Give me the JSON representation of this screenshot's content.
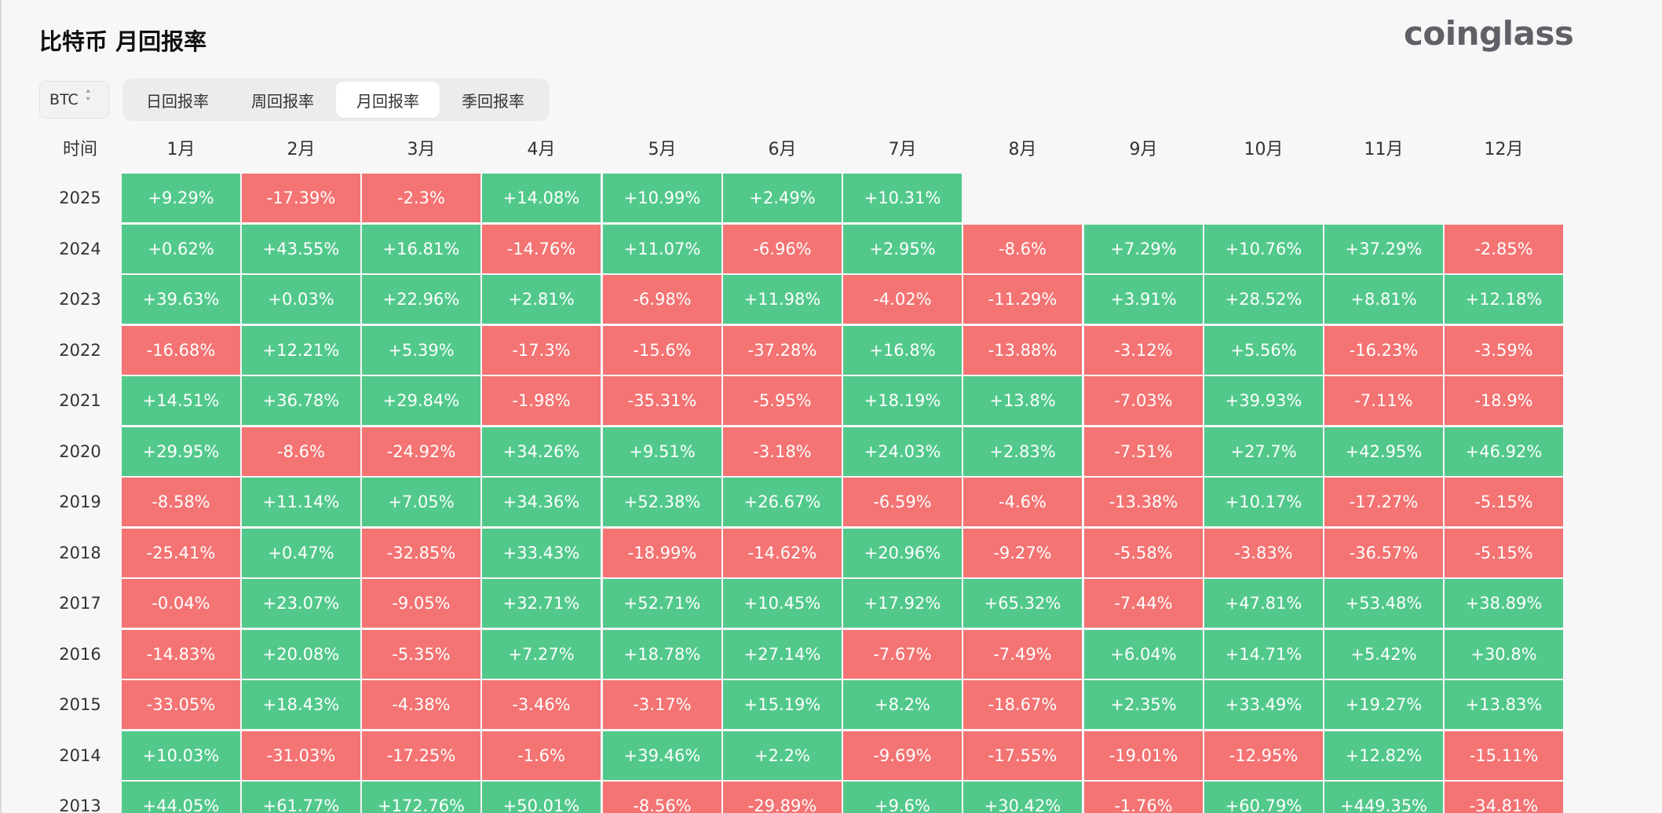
{
  "page": {
    "title": "比特币 月回报率",
    "logo": "coinglass"
  },
  "asset_select": {
    "value": "BTC"
  },
  "tabs": [
    {
      "label": "日回报率",
      "active": false
    },
    {
      "label": "周回报率",
      "active": false
    },
    {
      "label": "月回报率",
      "active": true
    },
    {
      "label": "季回报率",
      "active": false
    }
  ],
  "colors": {
    "positive": "#52c98b",
    "negative": "#f47373"
  },
  "table": {
    "time_header": "时间",
    "month_headers": [
      "1月",
      "2月",
      "3月",
      "4月",
      "5月",
      "6月",
      "7月",
      "8月",
      "9月",
      "10月",
      "11月",
      "12月"
    ],
    "rows": [
      {
        "year": "2025",
        "values": [
          "+9.29%",
          "-17.39%",
          "-2.3%",
          "+14.08%",
          "+10.99%",
          "+2.49%",
          "+10.31%",
          "",
          "",
          "",
          "",
          ""
        ]
      },
      {
        "year": "2024",
        "values": [
          "+0.62%",
          "+43.55%",
          "+16.81%",
          "-14.76%",
          "+11.07%",
          "-6.96%",
          "+2.95%",
          "-8.6%",
          "+7.29%",
          "+10.76%",
          "+37.29%",
          "-2.85%"
        ]
      },
      {
        "year": "2023",
        "values": [
          "+39.63%",
          "+0.03%",
          "+22.96%",
          "+2.81%",
          "-6.98%",
          "+11.98%",
          "-4.02%",
          "-11.29%",
          "+3.91%",
          "+28.52%",
          "+8.81%",
          "+12.18%"
        ]
      },
      {
        "year": "2022",
        "values": [
          "-16.68%",
          "+12.21%",
          "+5.39%",
          "-17.3%",
          "-15.6%",
          "-37.28%",
          "+16.8%",
          "-13.88%",
          "-3.12%",
          "+5.56%",
          "-16.23%",
          "-3.59%"
        ]
      },
      {
        "year": "2021",
        "values": [
          "+14.51%",
          "+36.78%",
          "+29.84%",
          "-1.98%",
          "-35.31%",
          "-5.95%",
          "+18.19%",
          "+13.8%",
          "-7.03%",
          "+39.93%",
          "-7.11%",
          "-18.9%"
        ]
      },
      {
        "year": "2020",
        "values": [
          "+29.95%",
          "-8.6%",
          "-24.92%",
          "+34.26%",
          "+9.51%",
          "-3.18%",
          "+24.03%",
          "+2.83%",
          "-7.51%",
          "+27.7%",
          "+42.95%",
          "+46.92%"
        ]
      },
      {
        "year": "2019",
        "values": [
          "-8.58%",
          "+11.14%",
          "+7.05%",
          "+34.36%",
          "+52.38%",
          "+26.67%",
          "-6.59%",
          "-4.6%",
          "-13.38%",
          "+10.17%",
          "-17.27%",
          "-5.15%"
        ]
      },
      {
        "year": "2018",
        "values": [
          "-25.41%",
          "+0.47%",
          "-32.85%",
          "+33.43%",
          "-18.99%",
          "-14.62%",
          "+20.96%",
          "-9.27%",
          "-5.58%",
          "-3.83%",
          "-36.57%",
          "-5.15%"
        ]
      },
      {
        "year": "2017",
        "values": [
          "-0.04%",
          "+23.07%",
          "-9.05%",
          "+32.71%",
          "+52.71%",
          "+10.45%",
          "+17.92%",
          "+65.32%",
          "-7.44%",
          "+47.81%",
          "+53.48%",
          "+38.89%"
        ]
      },
      {
        "year": "2016",
        "values": [
          "-14.83%",
          "+20.08%",
          "-5.35%",
          "+7.27%",
          "+18.78%",
          "+27.14%",
          "-7.67%",
          "-7.49%",
          "+6.04%",
          "+14.71%",
          "+5.42%",
          "+30.8%"
        ]
      },
      {
        "year": "2015",
        "values": [
          "-33.05%",
          "+18.43%",
          "-4.38%",
          "-3.46%",
          "-3.17%",
          "+15.19%",
          "+8.2%",
          "-18.67%",
          "+2.35%",
          "+33.49%",
          "+19.27%",
          "+13.83%"
        ]
      },
      {
        "year": "2014",
        "values": [
          "+10.03%",
          "-31.03%",
          "-17.25%",
          "-1.6%",
          "+39.46%",
          "+2.2%",
          "-9.69%",
          "-17.55%",
          "-19.01%",
          "-12.95%",
          "+12.82%",
          "-15.11%"
        ]
      },
      {
        "year": "2013",
        "values": [
          "+44.05%",
          "+61.77%",
          "+172.76%",
          "+50.01%",
          "-8.56%",
          "-29.89%",
          "+9.6%",
          "+30.42%",
          "-1.76%",
          "+60.79%",
          "+449.35%",
          "-34.81%"
        ]
      }
    ]
  }
}
